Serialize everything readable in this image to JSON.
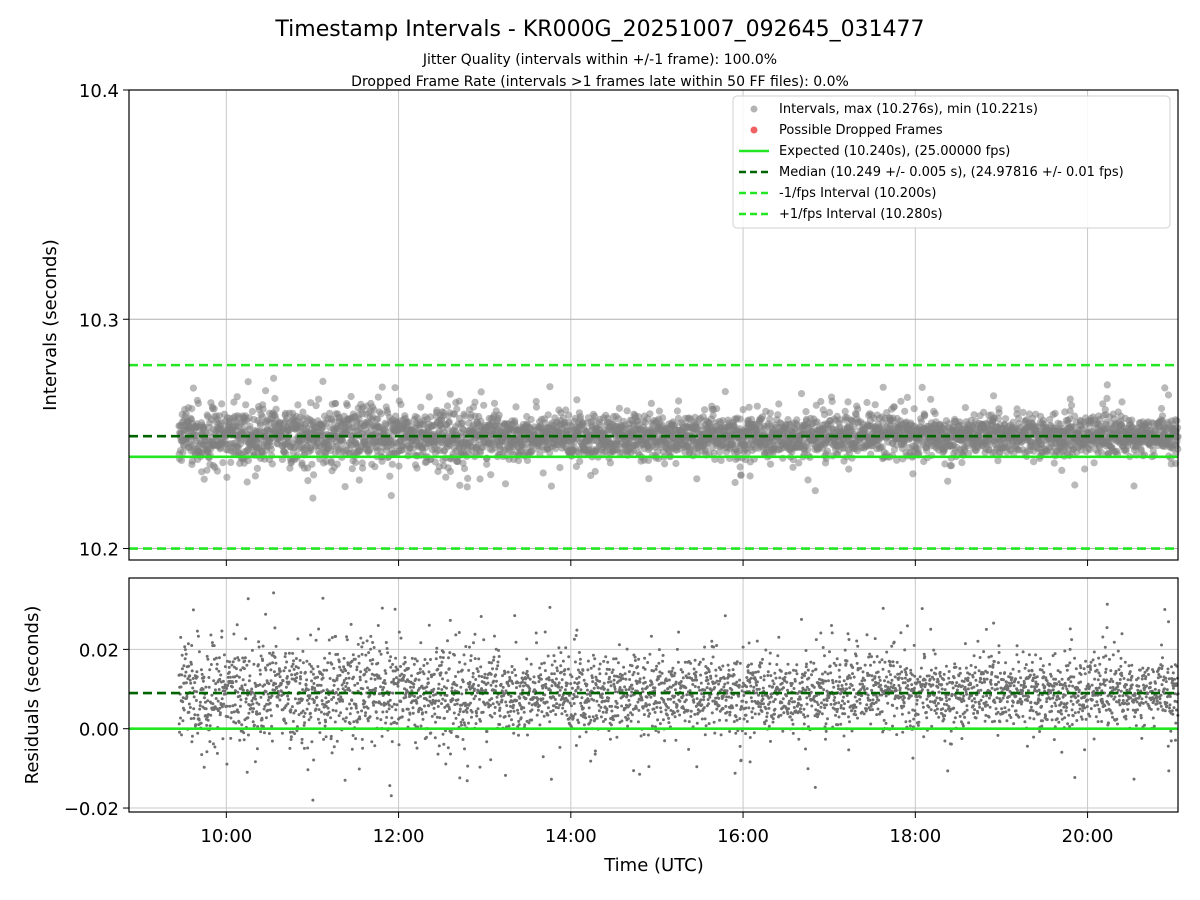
{
  "chart_data": [
    {
      "type": "scatter",
      "title": "Timestamp Intervals - KR000G_20251007_092645_031477",
      "subtitle_lines": [
        "Jitter Quality (intervals within +/-1 frame): 100.0%",
        "Dropped Frame Rate (intervals >1 frames late within 50 FF files): 0.0%"
      ],
      "xlabel": "",
      "ylabel": "Intervals (seconds)",
      "xlim_hours": [
        8.87,
        21.05
      ],
      "ylim": [
        10.195,
        10.4
      ],
      "yticks": [
        10.2,
        10.3,
        10.4
      ],
      "yticklabels": [
        "10.2",
        "10.3",
        "10.4"
      ],
      "grid": true,
      "legend_position": "top-right",
      "series": [
        {
          "name": "Intervals, max (10.276s), min (10.221s)",
          "kind": "scatter",
          "color": "#808080",
          "start_hour": 9.45,
          "end_hour": 21.05,
          "count_approx": 4000,
          "center": 10.249,
          "max": 10.276,
          "min": 10.221
        },
        {
          "name": "Possible Dropped Frames",
          "kind": "scatter",
          "color": "#f06262",
          "values": []
        }
      ],
      "lines": [
        {
          "name": "Expected (10.240s), (25.00000 fps)",
          "y": 10.24,
          "style": "solid",
          "color": "#22e622"
        },
        {
          "name": "Median (10.249 +/- 0.005 s), (24.97816 +/- 0.01 fps)",
          "y": 10.249,
          "style": "dashed",
          "color": "#006400"
        },
        {
          "name": "-1/fps Interval (10.200s)",
          "y": 10.2,
          "style": "dashed",
          "color": "#22e622"
        },
        {
          "name": "+1/fps Interval (10.280s)",
          "y": 10.28,
          "style": "dashed",
          "color": "#22e622"
        }
      ]
    },
    {
      "type": "scatter",
      "title": "",
      "xlabel": "Time (UTC)",
      "ylabel": "Residuals (seconds)",
      "xlim_hours": [
        8.87,
        21.05
      ],
      "xticks_hours": [
        10,
        12,
        14,
        16,
        18,
        20
      ],
      "xticklabels": [
        "10:00",
        "12:00",
        "14:00",
        "16:00",
        "18:00",
        "20:00"
      ],
      "ylim": [
        -0.021,
        0.038
      ],
      "yticks": [
        -0.02,
        0.0,
        0.02
      ],
      "yticklabels": [
        "−0.02",
        "0.00",
        "0.02"
      ],
      "grid": true,
      "series": [
        {
          "name": "Residuals",
          "kind": "scatter",
          "color": "#707070",
          "center": 0.009,
          "max": 0.036,
          "min": -0.019
        }
      ],
      "lines": [
        {
          "name": "Zero",
          "y": 0.0,
          "style": "solid",
          "color": "#22e622"
        },
        {
          "name": "Median residual",
          "y": 0.009,
          "style": "dashed",
          "color": "#006400"
        }
      ]
    }
  ]
}
